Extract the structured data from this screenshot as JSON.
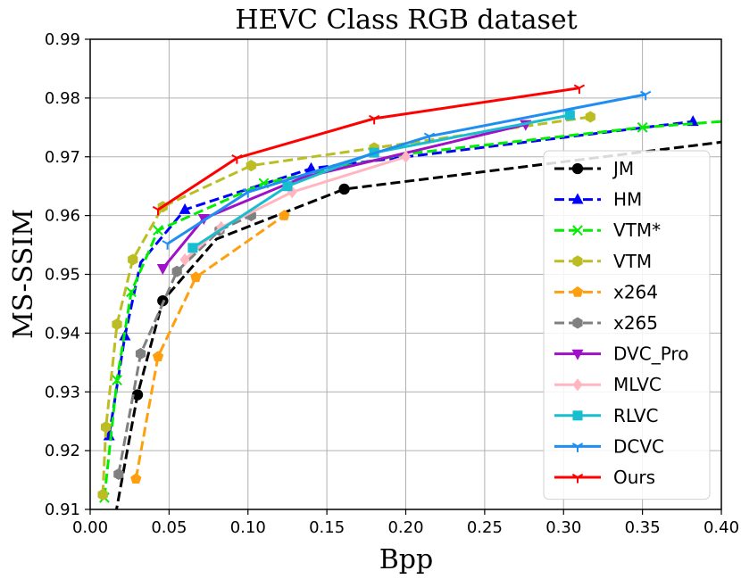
{
  "chart_data": {
    "type": "line",
    "title": "HEVC Class RGB dataset",
    "xlabel": "Bpp",
    "ylabel": "MS-SSIM",
    "xlim": [
      0.0,
      0.4
    ],
    "ylim": [
      0.91,
      0.99
    ],
    "xticks": [
      0.0,
      0.05,
      0.1,
      0.15,
      0.2,
      0.25,
      0.3,
      0.35,
      0.4
    ],
    "xtick_labels": [
      "0.00",
      "0.05",
      "0.10",
      "0.15",
      "0.20",
      "0.25",
      "0.30",
      "0.35",
      "0.40"
    ],
    "yticks": [
      0.91,
      0.92,
      0.93,
      0.94,
      0.95,
      0.96,
      0.97,
      0.98,
      0.99
    ],
    "ytick_labels": [
      "0.91",
      "0.92",
      "0.93",
      "0.94",
      "0.95",
      "0.96",
      "0.97",
      "0.98",
      "0.99"
    ],
    "grid": true,
    "legend_position": "right",
    "series": [
      {
        "name": "JM",
        "color": "#000000",
        "dash": "dashed",
        "marker": "circle",
        "markevery": "sparse",
        "points": [
          [
            0.016,
            0.909
          ],
          [
            0.03,
            0.9295
          ],
          [
            0.046,
            0.9455
          ],
          [
            0.08,
            0.956
          ],
          [
            0.161,
            0.9645
          ],
          [
            0.4,
            0.9725
          ]
        ],
        "marked": [
          1,
          2,
          4
        ]
      },
      {
        "name": "HM",
        "color": "#0000ff",
        "dash": "dashed",
        "marker": "triangle-up",
        "markevery": "sparse",
        "points": [
          [
            0.012,
            0.9225
          ],
          [
            0.022,
            0.9395
          ],
          [
            0.032,
            0.952
          ],
          [
            0.06,
            0.961
          ],
          [
            0.14,
            0.968
          ],
          [
            0.382,
            0.976
          ]
        ],
        "marked": [
          0,
          1,
          3,
          4,
          5
        ]
      },
      {
        "name": "VTM*",
        "color": "#00ee00",
        "dash": "dashed",
        "marker": "x",
        "markevery": "sparse",
        "points": [
          [
            0.009,
            0.912
          ],
          [
            0.017,
            0.932
          ],
          [
            0.026,
            0.947
          ],
          [
            0.043,
            0.9575
          ],
          [
            0.11,
            0.9655
          ],
          [
            0.2,
            0.9705
          ],
          [
            0.35,
            0.975
          ],
          [
            0.4,
            0.976
          ]
        ],
        "marked": [
          0,
          1,
          2,
          3,
          4,
          6
        ]
      },
      {
        "name": "VTM",
        "color": "#bcbd22",
        "dash": "dashed",
        "marker": "hexagon",
        "markevery": "all",
        "points": [
          [
            0.008,
            0.9125
          ],
          [
            0.01,
            0.924
          ],
          [
            0.017,
            0.9415
          ],
          [
            0.027,
            0.9525
          ],
          [
            0.046,
            0.9615
          ],
          [
            0.102,
            0.9685
          ],
          [
            0.18,
            0.9715
          ],
          [
            0.317,
            0.9768
          ]
        ],
        "marked": [
          0,
          1,
          2,
          3,
          4,
          5,
          6,
          7
        ]
      },
      {
        "name": "x264",
        "color": "#ff9f10",
        "dash": "dashed",
        "marker": "pentagon",
        "markevery": "all",
        "points": [
          [
            0.029,
            0.9152
          ],
          [
            0.043,
            0.936
          ],
          [
            0.067,
            0.9495
          ],
          [
            0.123,
            0.96
          ]
        ],
        "marked": [
          0,
          1,
          2,
          3
        ]
      },
      {
        "name": "x265",
        "color": "#808080",
        "dash": "dashed",
        "marker": "hexagon",
        "markevery": "all",
        "points": [
          [
            0.018,
            0.916
          ],
          [
            0.032,
            0.9365
          ],
          [
            0.055,
            0.9505
          ],
          [
            0.082,
            0.9575
          ],
          [
            0.102,
            0.96
          ]
        ],
        "marked": [
          0,
          1,
          2,
          3,
          4
        ]
      },
      {
        "name": "DVC_Pro",
        "color": "#a010c8",
        "dash": "solid",
        "marker": "triangle-down",
        "markevery": "sparse",
        "points": [
          [
            0.046,
            0.951
          ],
          [
            0.072,
            0.9595
          ],
          [
            0.135,
            0.9665
          ],
          [
            0.276,
            0.9755
          ]
        ],
        "marked": [
          0,
          1,
          3
        ]
      },
      {
        "name": "MLVC",
        "color": "#ffb6c1",
        "dash": "solid",
        "marker": "diamond",
        "markevery": "all",
        "points": [
          [
            0.06,
            0.9525
          ],
          [
            0.083,
            0.958
          ],
          [
            0.128,
            0.964
          ],
          [
            0.2,
            0.97
          ]
        ],
        "marked": [
          0,
          1,
          2,
          3
        ]
      },
      {
        "name": "RLVC",
        "color": "#17becf",
        "dash": "solid",
        "marker": "square",
        "markevery": "all",
        "points": [
          [
            0.065,
            0.9545
          ],
          [
            0.125,
            0.965
          ],
          [
            0.18,
            0.9707
          ],
          [
            0.304,
            0.9771
          ]
        ],
        "marked": [
          0,
          1,
          2,
          3
        ]
      },
      {
        "name": "DCVC",
        "color": "#1f8ef1",
        "dash": "solid",
        "marker": "tri",
        "markevery": "all",
        "points": [
          [
            0.049,
            0.9552
          ],
          [
            0.1,
            0.964
          ],
          [
            0.215,
            0.9735
          ],
          [
            0.352,
            0.9806
          ]
        ],
        "marked": [
          0,
          1,
          2,
          3
        ]
      },
      {
        "name": "Ours",
        "color": "#ff0000",
        "dash": "solid",
        "marker": "tri",
        "markevery": "all",
        "points": [
          [
            0.043,
            0.961
          ],
          [
            0.093,
            0.9698
          ],
          [
            0.18,
            0.9765
          ],
          [
            0.31,
            0.9817
          ]
        ],
        "marked": [
          0,
          1,
          2,
          3
        ]
      }
    ]
  }
}
